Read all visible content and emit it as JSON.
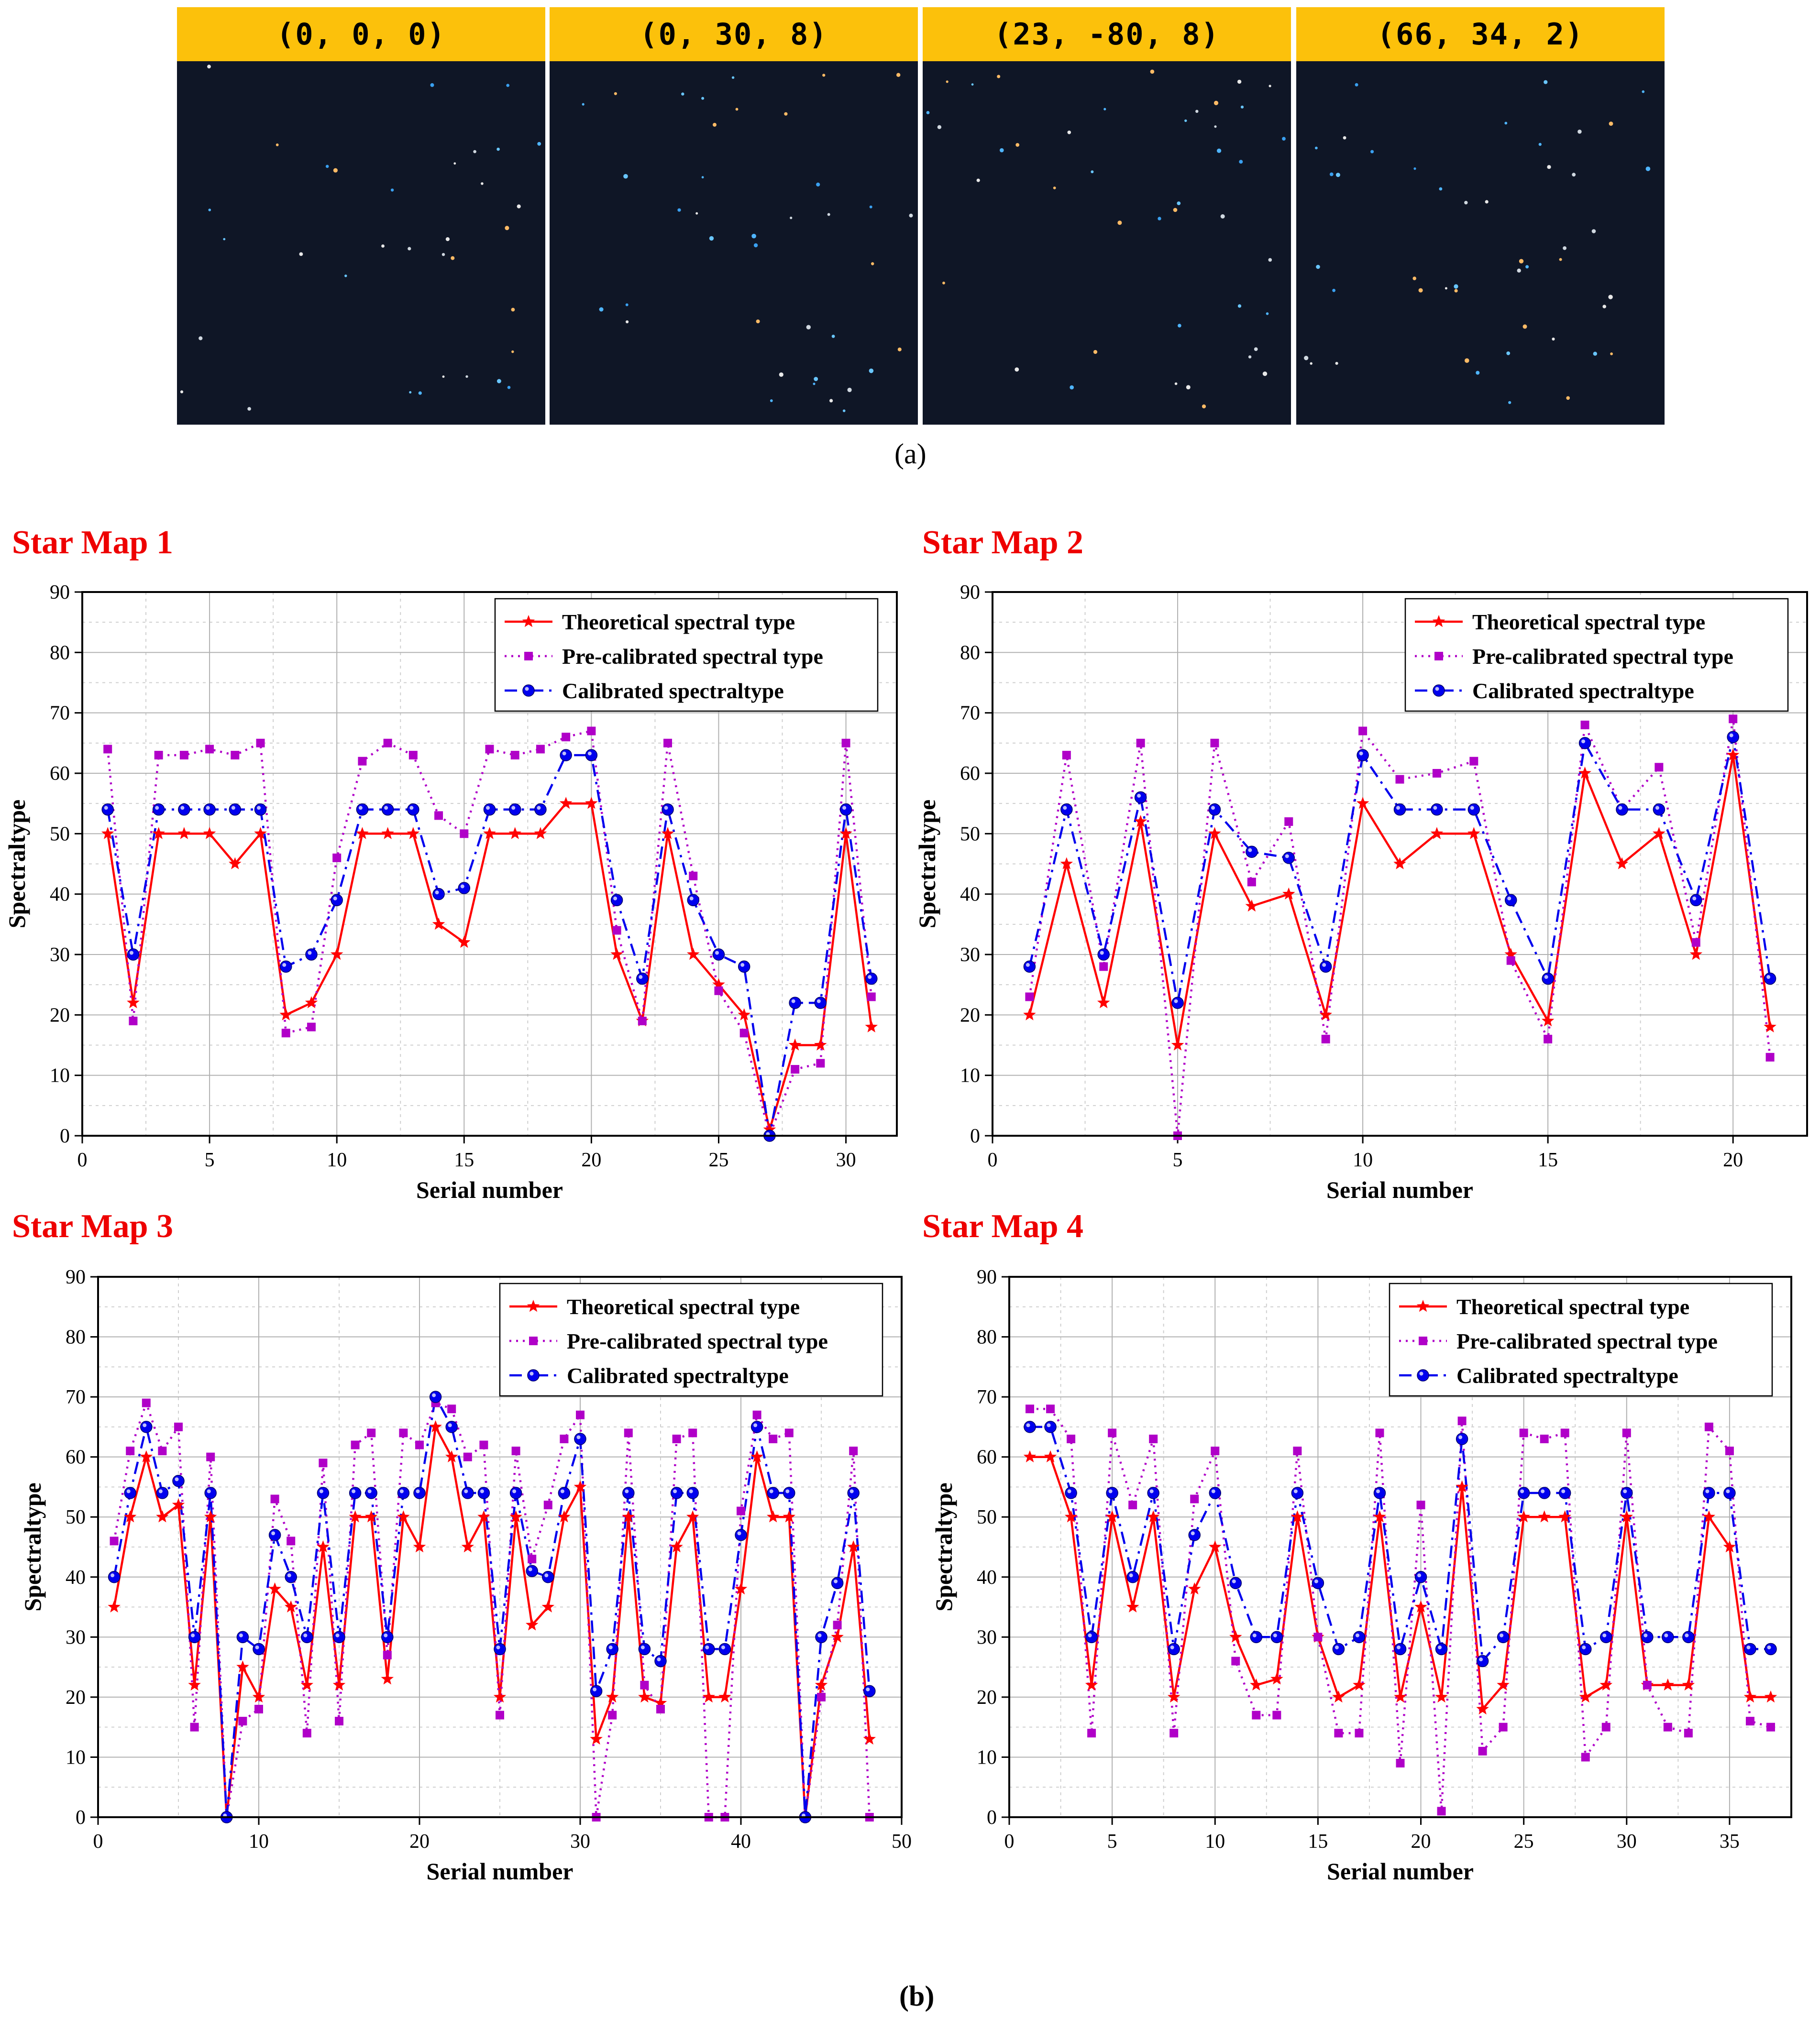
{
  "panel_a": {
    "label": "(a)",
    "maps": [
      {
        "orientation": "(0, 0, 0)"
      },
      {
        "orientation": "(0, 30, 8)"
      },
      {
        "orientation": "(23, -80, 8)"
      },
      {
        "orientation": "(66, 34, 2)"
      }
    ]
  },
  "panel_b": {
    "label": "(b)"
  },
  "colors": {
    "theoretical": "#ff0000",
    "precalibrated": "#b000c8",
    "calibrated": "#0000ee",
    "title": "#ee0000",
    "header": "#fcc10b",
    "sky": "#0f1626"
  },
  "chart_data": [
    {
      "type": "line",
      "title": "Star Map 1",
      "xlabel": "Serial number",
      "ylabel": "Spectraltype",
      "xlim": [
        0,
        32
      ],
      "ylim": [
        0,
        90
      ],
      "xticks": [
        0,
        5,
        10,
        15,
        20,
        25,
        30
      ],
      "yticks": [
        0,
        10,
        20,
        30,
        40,
        50,
        60,
        70,
        80,
        90
      ],
      "legend_position": "top-right",
      "x": [
        1,
        2,
        3,
        4,
        5,
        6,
        7,
        8,
        9,
        10,
        11,
        12,
        13,
        14,
        15,
        16,
        17,
        18,
        19,
        20,
        21,
        22,
        23,
        24,
        25,
        26,
        27,
        28,
        29,
        30,
        31
      ],
      "series": [
        {
          "name": "Theoretical spectral type",
          "marker": "star",
          "values": [
            50,
            22,
            50,
            50,
            50,
            45,
            50,
            20,
            22,
            30,
            50,
            50,
            50,
            35,
            32,
            50,
            50,
            50,
            55,
            55,
            30,
            19,
            50,
            30,
            25,
            20,
            1,
            15,
            15,
            50,
            18
          ]
        },
        {
          "name": "Pre-calibrated spectral type",
          "marker": "square",
          "values": [
            64,
            19,
            63,
            63,
            64,
            63,
            65,
            17,
            18,
            46,
            62,
            65,
            63,
            53,
            50,
            64,
            63,
            64,
            66,
            67,
            34,
            19,
            65,
            43,
            24,
            17,
            0,
            11,
            12,
            65,
            23
          ]
        },
        {
          "name": "Calibrated spectraltype",
          "marker": "circle",
          "values": [
            54,
            30,
            54,
            54,
            54,
            54,
            54,
            28,
            30,
            39,
            54,
            54,
            54,
            40,
            41,
            54,
            54,
            54,
            63,
            63,
            39,
            26,
            54,
            39,
            30,
            28,
            0,
            22,
            22,
            54,
            26
          ]
        }
      ]
    },
    {
      "type": "line",
      "title": "Star Map 2",
      "xlabel": "Serial number",
      "ylabel": "Spectraltype",
      "xlim": [
        0,
        22
      ],
      "ylim": [
        0,
        90
      ],
      "xticks": [
        0,
        5,
        10,
        15,
        20
      ],
      "yticks": [
        0,
        10,
        20,
        30,
        40,
        50,
        60,
        70,
        80,
        90
      ],
      "legend_position": "top-right",
      "x": [
        1,
        2,
        3,
        4,
        5,
        6,
        7,
        8,
        9,
        10,
        11,
        12,
        13,
        14,
        15,
        16,
        17,
        18,
        19,
        20,
        21
      ],
      "series": [
        {
          "name": "Theoretical spectral type",
          "marker": "star",
          "values": [
            20,
            45,
            22,
            52,
            15,
            50,
            38,
            40,
            20,
            55,
            45,
            50,
            50,
            30,
            19,
            60,
            45,
            50,
            30,
            63,
            18
          ]
        },
        {
          "name": "Pre-calibrated spectral type",
          "marker": "square",
          "values": [
            23,
            63,
            28,
            65,
            0,
            65,
            42,
            52,
            16,
            67,
            59,
            60,
            62,
            29,
            16,
            68,
            54,
            61,
            32,
            69,
            13
          ]
        },
        {
          "name": "Calibrated spectraltype",
          "marker": "circle",
          "values": [
            28,
            54,
            30,
            56,
            22,
            54,
            47,
            46,
            28,
            63,
            54,
            54,
            54,
            39,
            26,
            65,
            54,
            54,
            39,
            66,
            26
          ]
        }
      ]
    },
    {
      "type": "line",
      "title": "Star Map 3",
      "xlabel": "Serial number",
      "ylabel": "Spectraltype",
      "xlim": [
        0,
        50
      ],
      "ylim": [
        0,
        90
      ],
      "xticks": [
        0,
        10,
        20,
        30,
        40,
        50
      ],
      "yticks": [
        0,
        10,
        20,
        30,
        40,
        50,
        60,
        70,
        80,
        90
      ],
      "legend_position": "top-right",
      "x": [
        1,
        2,
        3,
        4,
        5,
        6,
        7,
        8,
        9,
        10,
        11,
        12,
        13,
        14,
        15,
        16,
        17,
        18,
        19,
        20,
        21,
        22,
        23,
        24,
        25,
        26,
        27,
        28,
        29,
        30,
        31,
        32,
        33,
        34,
        35,
        36,
        37,
        38,
        39,
        40,
        41,
        42,
        43,
        44,
        45,
        46,
        47,
        48
      ],
      "series": [
        {
          "name": "Theoretical spectral type",
          "marker": "star",
          "values": [
            35,
            50,
            60,
            50,
            52,
            22,
            50,
            0,
            25,
            20,
            38,
            35,
            22,
            45,
            22,
            50,
            50,
            23,
            50,
            45,
            65,
            60,
            45,
            50,
            20,
            50,
            32,
            35,
            50,
            55,
            13,
            20,
            50,
            20,
            19,
            45,
            50,
            20,
            20,
            38,
            60,
            50,
            50,
            0,
            22,
            30,
            45,
            13
          ]
        },
        {
          "name": "Pre-calibrated spectral type",
          "marker": "square",
          "values": [
            46,
            61,
            69,
            61,
            65,
            15,
            60,
            0,
            16,
            18,
            53,
            46,
            14,
            59,
            16,
            62,
            64,
            27,
            64,
            62,
            69,
            68,
            60,
            62,
            17,
            61,
            43,
            52,
            63,
            67,
            0,
            17,
            64,
            22,
            18,
            63,
            64,
            0,
            0,
            51,
            67,
            63,
            64,
            0,
            20,
            32,
            61,
            0
          ]
        },
        {
          "name": "Calibrated spectraltype",
          "marker": "circle",
          "values": [
            40,
            54,
            65,
            54,
            56,
            30,
            54,
            0,
            30,
            28,
            47,
            40,
            30,
            54,
            30,
            54,
            54,
            30,
            54,
            54,
            70,
            65,
            54,
            54,
            28,
            54,
            41,
            40,
            54,
            63,
            21,
            28,
            54,
            28,
            26,
            54,
            54,
            28,
            28,
            47,
            65,
            54,
            54,
            0,
            30,
            39,
            54,
            21
          ]
        }
      ]
    },
    {
      "type": "line",
      "title": "Star Map 4",
      "xlabel": "Serial number",
      "ylabel": "Spectraltype",
      "xlim": [
        0,
        38
      ],
      "ylim": [
        0,
        90
      ],
      "xticks": [
        0,
        5,
        10,
        15,
        20,
        25,
        30,
        35
      ],
      "yticks": [
        0,
        10,
        20,
        30,
        40,
        50,
        60,
        70,
        80,
        90
      ],
      "legend_position": "top-right",
      "x": [
        1,
        2,
        3,
        4,
        5,
        6,
        7,
        8,
        9,
        10,
        11,
        12,
        13,
        14,
        15,
        16,
        17,
        18,
        19,
        20,
        21,
        22,
        23,
        24,
        25,
        26,
        27,
        28,
        29,
        30,
        31,
        32,
        33,
        34,
        35,
        36,
        37
      ],
      "series": [
        {
          "name": "Theoretical spectral type",
          "marker": "star",
          "values": [
            60,
            60,
            50,
            22,
            50,
            35,
            50,
            20,
            38,
            45,
            30,
            22,
            23,
            50,
            30,
            20,
            22,
            50,
            20,
            35,
            20,
            55,
            18,
            22,
            50,
            50,
            50,
            20,
            22,
            50,
            22,
            22,
            22,
            50,
            45,
            20,
            20
          ]
        },
        {
          "name": "Pre-calibrated spectral type",
          "marker": "square",
          "values": [
            68,
            68,
            63,
            14,
            64,
            52,
            63,
            14,
            53,
            61,
            26,
            17,
            17,
            61,
            30,
            14,
            14,
            64,
            9,
            52,
            1,
            66,
            11,
            15,
            64,
            63,
            64,
            10,
            15,
            64,
            22,
            15,
            14,
            65,
            61,
            16,
            15
          ]
        },
        {
          "name": "Calibrated spectraltype",
          "marker": "circle",
          "values": [
            65,
            65,
            54,
            30,
            54,
            40,
            54,
            28,
            47,
            54,
            39,
            30,
            30,
            54,
            39,
            28,
            30,
            54,
            28,
            40,
            28,
            63,
            26,
            30,
            54,
            54,
            54,
            28,
            30,
            54,
            30,
            30,
            30,
            54,
            54,
            28,
            28
          ]
        }
      ]
    }
  ]
}
